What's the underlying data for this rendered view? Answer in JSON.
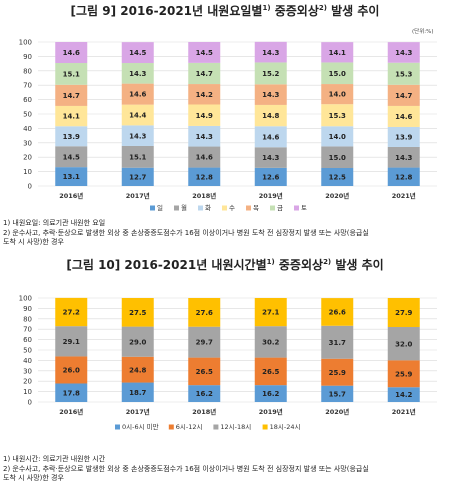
{
  "charts": [
    {
      "title_prefix": "[그림 9]  2016-2021년 내원요일별",
      "title_sup1": "1)",
      "title_mid": " 중증외상",
      "title_sup2": "2)",
      "title_suffix": " 발생 추이",
      "unit": "(단위:%)",
      "notes": [
        "1) 내원요일: 의료기관 내원한 요일",
        "2) 운수사고, 추락·둔상으로 발생한 외상 중 손상중증도점수가 16점 이상이거나 병원 도착 전 심장정지 발생 또는 사망(응급실",
        "   도착 시 사망)한 경우"
      ]
    },
    {
      "title_prefix": "[그림 10]  2016-2021년 내원시간별",
      "title_sup1": "1)",
      "title_mid": " 중증외상",
      "title_sup2": "2)",
      "title_suffix": " 발생 추이",
      "notes": [
        "1) 내원시간: 의료기관 내원한 시간",
        "2) 운수사고, 추락·둔상으로 발생한 외상 중 손상중증도점수가 16점 이상이거나 병원 도착 전 심장정지 발생 또는 사망(응급실",
        "   도착 시 사망)한 경우"
      ]
    }
  ],
  "chart_data": [
    {
      "type": "bar",
      "stacked": true,
      "title": "[그림 9] 2016-2021년 내원요일별 중증외상 발생 추이",
      "categories": [
        "2016년",
        "2017년",
        "2018년",
        "2019년",
        "2020년",
        "2021년"
      ],
      "ylim": [
        0,
        100
      ],
      "yticks": [
        0,
        10,
        20,
        30,
        40,
        50,
        60,
        70,
        80,
        90,
        100
      ],
      "grid": true,
      "legend": "bottom",
      "series": [
        {
          "name": "일",
          "color": "#5b9bd5",
          "values": [
            13.1,
            12.7,
            12.8,
            12.6,
            12.5,
            12.8
          ]
        },
        {
          "name": "월",
          "color": "#a5a5a5",
          "values": [
            14.5,
            15.1,
            14.6,
            14.3,
            15.0,
            14.3
          ]
        },
        {
          "name": "화",
          "color": "#bdd7ee",
          "values": [
            13.9,
            14.3,
            14.3,
            14.6,
            14.0,
            13.9
          ]
        },
        {
          "name": "수",
          "color": "#ffe699",
          "values": [
            14.1,
            14.4,
            14.9,
            14.8,
            15.3,
            14.6
          ]
        },
        {
          "name": "목",
          "color": "#f4b183",
          "values": [
            14.7,
            14.6,
            14.2,
            14.3,
            14.0,
            14.7
          ]
        },
        {
          "name": "금",
          "color": "#c5e0b4",
          "values": [
            15.1,
            14.3,
            14.7,
            15.2,
            15.0,
            15.3
          ]
        },
        {
          "name": "토",
          "color": "#d9a6e6",
          "values": [
            14.6,
            14.5,
            14.5,
            14.3,
            14.1,
            14.3
          ]
        }
      ]
    },
    {
      "type": "bar",
      "stacked": true,
      "title": "[그림 10] 2016-2021년 내원시간별 중증외상 발생 추이",
      "categories": [
        "2016년",
        "2017년",
        "2018년",
        "2019년",
        "2020년",
        "2021년"
      ],
      "ylim": [
        0,
        100
      ],
      "yticks": [
        0,
        10,
        20,
        30,
        40,
        50,
        60,
        70,
        80,
        90,
        100
      ],
      "grid": true,
      "legend": "bottom",
      "series": [
        {
          "name": "0시-6시 미만",
          "color": "#5b9bd5",
          "values": [
            17.8,
            18.7,
            16.2,
            16.2,
            15.7,
            14.2
          ]
        },
        {
          "name": "6시-12시",
          "color": "#ed7d31",
          "values": [
            26.0,
            24.8,
            26.5,
            26.5,
            25.9,
            25.9
          ]
        },
        {
          "name": "12시-18시",
          "color": "#a5a5a5",
          "values": [
            29.1,
            29.0,
            29.7,
            30.2,
            31.7,
            32.0
          ]
        },
        {
          "name": "18시-24시",
          "color": "#ffc000",
          "values": [
            27.2,
            27.5,
            27.6,
            27.1,
            26.6,
            27.9
          ]
        }
      ]
    }
  ]
}
